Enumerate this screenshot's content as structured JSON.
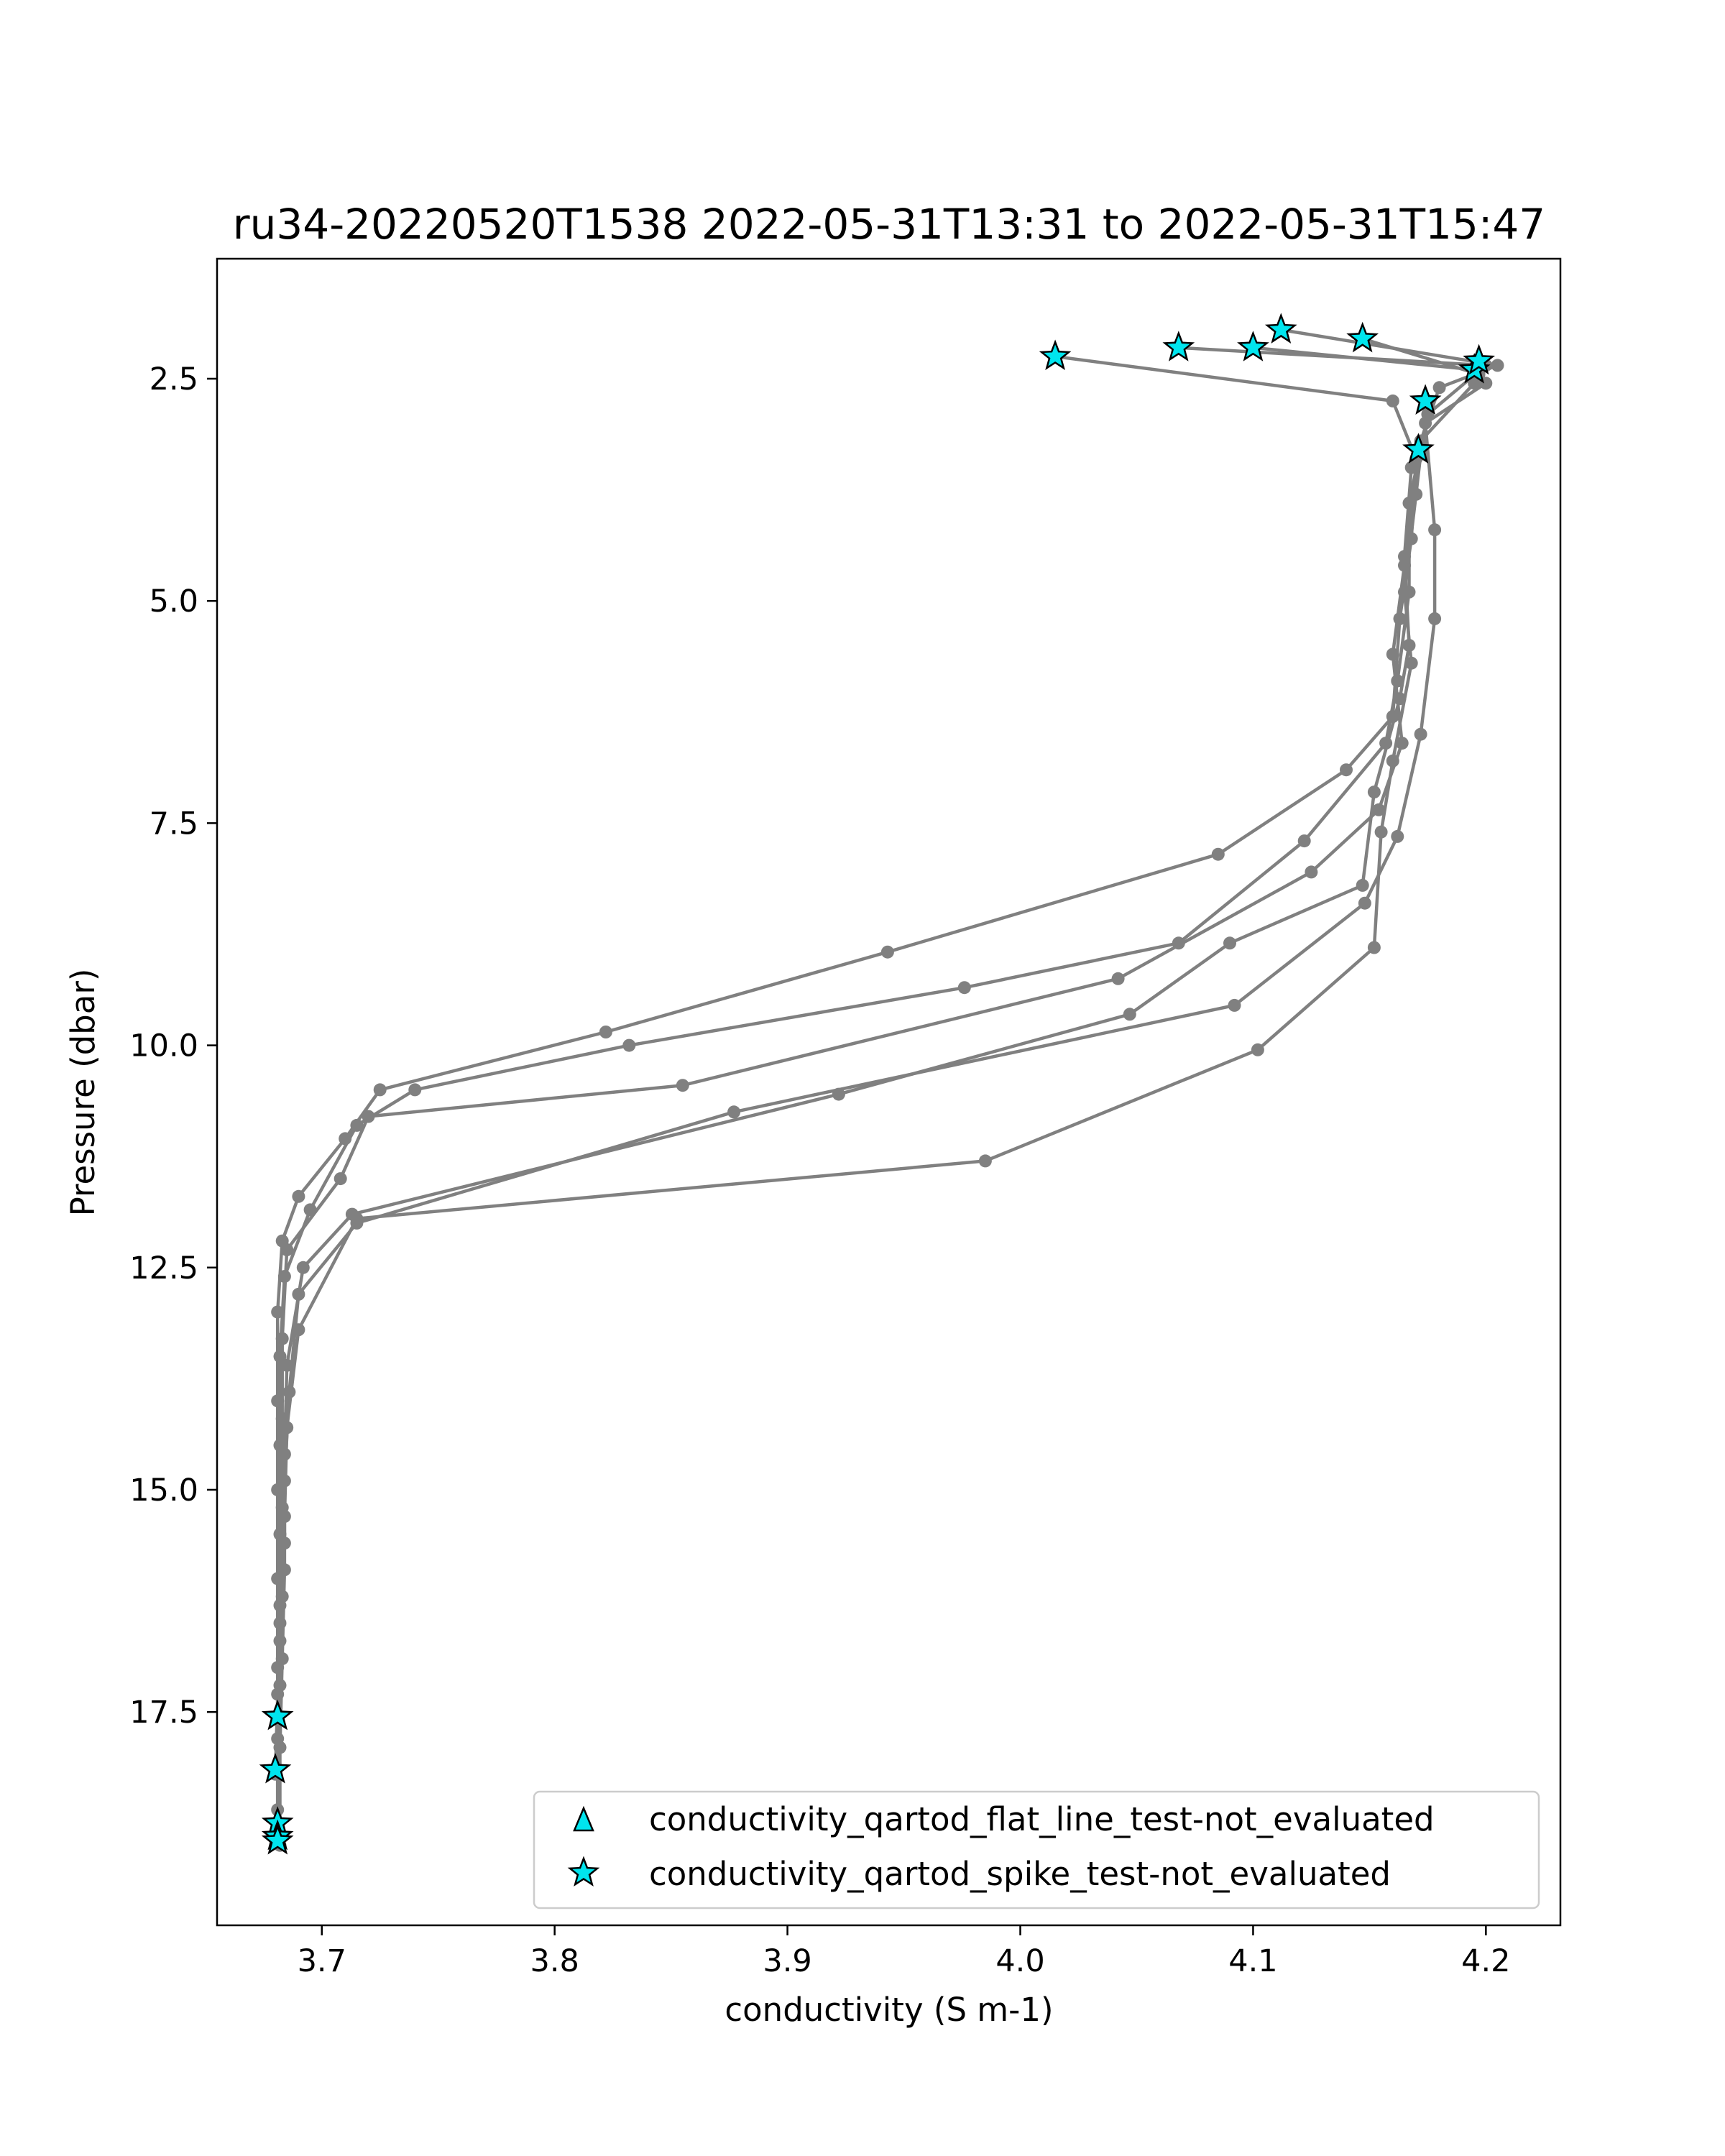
{
  "chart_data": {
    "type": "scatter",
    "title": "ru34-20220520T1538 2022-05-31T13:31 to 2022-05-31T15:47",
    "xlabel": "conductivity (S m-1)",
    "ylabel": "Pressure (dbar)",
    "xlim": [
      3.655,
      4.232
    ],
    "ylim": [
      19.9,
      1.15
    ],
    "y_inverted": true,
    "grid": false,
    "legend_placement": "lower-right",
    "x_ticks": [
      {
        "value": 3.7,
        "label": "3.7"
      },
      {
        "value": 3.8,
        "label": "3.8"
      },
      {
        "value": 3.9,
        "label": "3.9"
      },
      {
        "value": 4.0,
        "label": "4.0"
      },
      {
        "value": 4.1,
        "label": "4.1"
      },
      {
        "value": 4.2,
        "label": "4.2"
      }
    ],
    "y_ticks": [
      {
        "value": 2.5,
        "label": "2.5"
      },
      {
        "value": 5.0,
        "label": "5.0"
      },
      {
        "value": 7.5,
        "label": "7.5"
      },
      {
        "value": 10.0,
        "label": "10.0"
      },
      {
        "value": 12.5,
        "label": "12.5"
      },
      {
        "value": 15.0,
        "label": "15.0"
      },
      {
        "value": 17.5,
        "label": "17.5"
      }
    ],
    "colors": {
      "profile": "#808080",
      "flag_fill": "#00e5ee",
      "flag_edge": "#000000"
    },
    "legend": [
      {
        "marker": "triangle",
        "label": "conductivity_qartod_flat_line_test-not_evaluated"
      },
      {
        "marker": "star",
        "label": "conductivity_qartod_spike_test-not_evaluated"
      }
    ],
    "series": [
      {
        "points": [
          [
            4.015,
            2.25
          ],
          [
            4.16,
            2.75
          ],
          [
            4.17,
            3.4
          ],
          [
            4.168,
            4.3
          ],
          [
            4.163,
            5.2
          ],
          [
            4.16,
            6.3
          ],
          [
            4.14,
            6.9
          ],
          [
            4.085,
            7.85
          ],
          [
            3.943,
            8.95
          ],
          [
            3.822,
            9.85
          ],
          [
            3.725,
            10.5
          ],
          [
            3.71,
            11.05
          ],
          [
            3.69,
            11.7
          ],
          [
            3.683,
            12.2
          ],
          [
            3.681,
            13.0
          ],
          [
            3.681,
            14.0
          ],
          [
            3.681,
            15.0
          ],
          [
            3.681,
            16.0
          ],
          [
            3.681,
            17.0
          ],
          [
            3.681,
            17.55
          ]
        ]
      },
      {
        "points": [
          [
            4.068,
            2.15
          ],
          [
            4.2,
            2.35
          ],
          [
            4.175,
            2.9
          ],
          [
            4.167,
            3.9
          ],
          [
            4.167,
            4.9
          ],
          [
            4.162,
            5.9
          ],
          [
            4.157,
            6.6
          ],
          [
            4.122,
            7.7
          ],
          [
            4.068,
            8.85
          ],
          [
            3.976,
            9.35
          ],
          [
            3.832,
            10.0
          ],
          [
            3.74,
            10.5
          ],
          [
            3.715,
            10.9
          ],
          [
            3.695,
            11.85
          ],
          [
            3.684,
            12.6
          ],
          [
            3.682,
            13.5
          ],
          [
            3.682,
            14.5
          ],
          [
            3.682,
            15.5
          ],
          [
            3.682,
            16.5
          ],
          [
            3.68,
            18.2
          ]
        ]
      },
      {
        "points": [
          [
            4.1,
            2.15
          ],
          [
            4.195,
            2.4
          ],
          [
            4.195,
            2.55
          ],
          [
            4.172,
            3.2
          ],
          [
            4.165,
            4.6
          ],
          [
            4.16,
            5.6
          ],
          [
            4.164,
            6.6
          ],
          [
            4.154,
            7.35
          ],
          [
            4.125,
            8.05
          ],
          [
            4.042,
            9.25
          ],
          [
            3.855,
            10.45
          ],
          [
            3.72,
            10.8
          ],
          [
            3.708,
            11.5
          ],
          [
            3.685,
            12.3
          ],
          [
            3.683,
            13.3
          ],
          [
            3.683,
            14.2
          ],
          [
            3.683,
            15.2
          ],
          [
            3.683,
            16.2
          ],
          [
            3.682,
            17.2
          ],
          [
            3.681,
            18.8
          ]
        ]
      },
      {
        "points": [
          [
            4.112,
            1.95
          ],
          [
            4.205,
            2.35
          ],
          [
            4.18,
            2.6
          ],
          [
            4.168,
            3.5
          ],
          [
            4.165,
            4.5
          ],
          [
            4.167,
            5.5
          ],
          [
            4.163,
            6.1
          ],
          [
            4.152,
            7.15
          ],
          [
            4.147,
            8.2
          ],
          [
            4.09,
            8.85
          ],
          [
            4.047,
            9.65
          ],
          [
            3.922,
            10.55
          ],
          [
            3.713,
            11.9
          ],
          [
            3.692,
            12.5
          ],
          [
            3.685,
            13.6
          ],
          [
            3.684,
            14.6
          ],
          [
            3.684,
            15.6
          ],
          [
            3.682,
            16.7
          ],
          [
            3.681,
            17.8
          ],
          [
            3.681,
            18.95
          ]
        ]
      },
      {
        "points": [
          [
            4.147,
            2.05
          ],
          [
            4.197,
            2.45
          ],
          [
            4.2,
            2.55
          ],
          [
            4.174,
            3.0
          ],
          [
            4.178,
            4.2
          ],
          [
            4.178,
            5.2
          ],
          [
            4.172,
            6.5
          ],
          [
            4.162,
            7.65
          ],
          [
            4.148,
            8.4
          ],
          [
            4.092,
            9.55
          ],
          [
            3.877,
            10.75
          ],
          [
            3.715,
            12.0
          ],
          [
            3.69,
            12.8
          ],
          [
            3.686,
            13.9
          ],
          [
            3.684,
            14.9
          ],
          [
            3.684,
            15.9
          ],
          [
            3.683,
            16.9
          ],
          [
            3.682,
            17.9
          ],
          [
            3.682,
            19.0
          ]
        ]
      },
      {
        "points": [
          [
            4.172,
            3.35
          ],
          [
            4.17,
            3.8
          ],
          [
            4.165,
            4.9
          ],
          [
            4.168,
            5.7
          ],
          [
            4.16,
            6.8
          ],
          [
            4.155,
            7.6
          ],
          [
            4.152,
            8.9
          ],
          [
            4.102,
            10.05
          ],
          [
            3.985,
            11.3
          ],
          [
            3.715,
            11.95
          ],
          [
            3.69,
            13.2
          ],
          [
            3.685,
            14.3
          ],
          [
            3.684,
            15.3
          ],
          [
            3.682,
            16.3
          ],
          [
            3.681,
            17.3
          ],
          [
            3.681,
            18.6
          ]
        ]
      }
    ],
    "flagged_points": [
      [
        4.015,
        2.25
      ],
      [
        4.068,
        2.15
      ],
      [
        4.1,
        2.15
      ],
      [
        4.112,
        1.95
      ],
      [
        4.147,
        2.05
      ],
      [
        4.195,
        2.4
      ],
      [
        4.197,
        2.3
      ],
      [
        4.174,
        2.75
      ],
      [
        4.171,
        3.3
      ],
      [
        3.681,
        17.55
      ],
      [
        3.68,
        18.15
      ],
      [
        3.681,
        18.75
      ],
      [
        3.681,
        18.9
      ],
      [
        3.681,
        18.95
      ]
    ]
  }
}
